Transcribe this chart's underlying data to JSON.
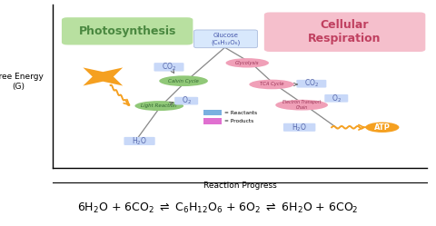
{
  "bg_color": "#ffffff",
  "ylabel": "Free Energy\n(G)",
  "xlabel": "Reaction Progress",
  "photosynthesis_label": "Photosynthesis",
  "photosynthesis_box_color": "#b8e0a0",
  "cellular_respiration_label": "Cellular\nRespiration",
  "cellular_respiration_box_color": "#f5bfcc",
  "glucose_label": "Glucose\n(C₆H₁₂O₆)",
  "glucose_box_color": "#c8d8f8",
  "reactant_color": "#7ab0e0",
  "product_color": "#e070d0",
  "co2_box_color": "#c8d8f8",
  "h2o_box_color": "#c8d8f8",
  "o2_box_color": "#c8d8f8",
  "atp_color": "#f5a020",
  "sun_color": "#f5a020",
  "arrow_color": "#666666",
  "wavy_color": "#f5a020",
  "light_reaction_color": "#90c878",
  "calvin_cycle_color": "#90c878",
  "glycolysis_color": "#f0a0b8",
  "tca_color": "#f0a0b8",
  "etc_color": "#f0a0b8",
  "photo_text_color": "#4a8840",
  "cr_text_color": "#c04060",
  "node_text_color": "#5566aa",
  "line_color": "#888888"
}
